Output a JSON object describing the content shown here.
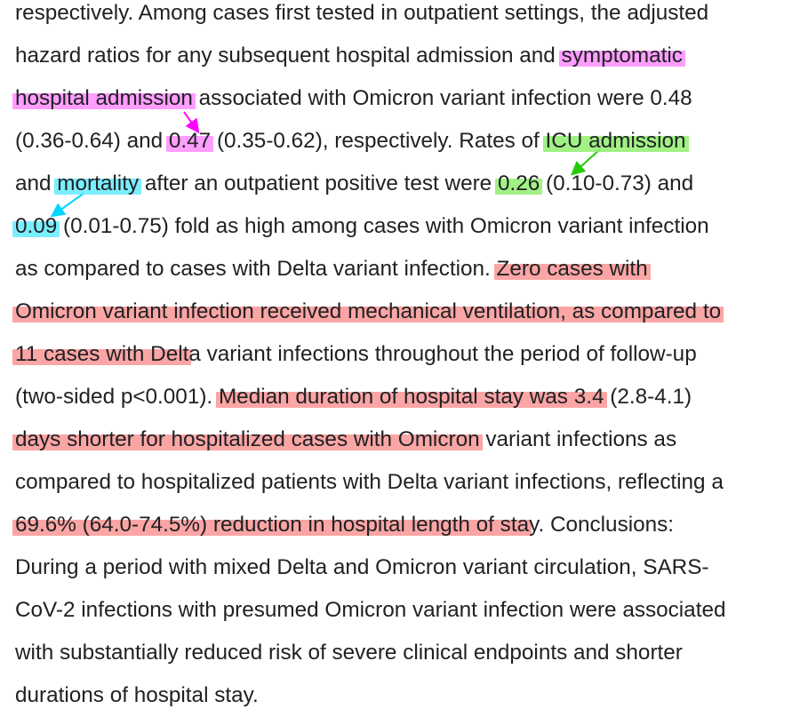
{
  "lines": [
    [
      "respectively. Among cases first tested in outpatient settings, the adjusted"
    ],
    [
      "hazard ratios for any subsequent hospital admission and ",
      {
        "t": "symptomatic",
        "c": "pink"
      }
    ],
    [
      {
        "t": "hospital admission",
        "c": "pink"
      },
      " associated with Omicron variant infection were 0.48"
    ],
    [
      "(0.36-0.64) and ",
      {
        "t": "0.47",
        "c": "pink"
      },
      " (0.35-0.62), respectively. Rates of ",
      {
        "t": "ICU admission",
        "c": "green"
      }
    ],
    [
      "and ",
      {
        "t": "mortality",
        "c": "cyan"
      },
      " after an outpatient positive test were ",
      {
        "t": "0.26",
        "c": "green"
      },
      " (0.10-0.73) and"
    ],
    [
      {
        "t": "0.09",
        "c": "cyan"
      },
      " (0.01-0.75) fold as high among cases with Omicron variant infection"
    ],
    [
      "as compared to cases with Delta variant infection. ",
      {
        "t": "Zero cases with",
        "c": "red"
      }
    ],
    [
      {
        "t": "Omicron variant infection received mechanical ventilation, as compared to",
        "c": "red"
      }
    ],
    [
      {
        "t": "11 cases with Delt",
        "c": "red"
      },
      "a variant infections throughout the period of follow-up"
    ],
    [
      "(two-sided p<0.001). ",
      {
        "t": "Median duration of hospital stay was 3.4",
        "c": "red"
      },
      " (2.8-4.1)"
    ],
    [
      {
        "t": "days shorter for hospitalized cases with Omicron",
        "c": "red"
      },
      " variant infections as"
    ],
    [
      "compared to hospitalized patients with Delta variant infections, reflecting a"
    ],
    [
      {
        "t": "69.6% (64.0-74.5%) reduction in hospital length of sta",
        "c": "red"
      },
      "y. Conclusions:"
    ],
    [
      "During a period with mixed Delta and Omicron variant circulation, SARS-"
    ],
    [
      "CoV-2 infections with presumed Omicron variant infection were associated"
    ],
    [
      "with substantially reduced risk of severe clinical endpoints and shorter"
    ],
    [
      "durations of hospital stay."
    ]
  ],
  "colors": {
    "text": "#202124",
    "pink": "#ff78ff",
    "green": "#90ee6e",
    "cyan": "#64ebff",
    "red": "#fa8282",
    "arrow_pink": "#ff00ff",
    "arrow_green": "#22cc00",
    "arrow_cyan": "#00d4ff"
  }
}
